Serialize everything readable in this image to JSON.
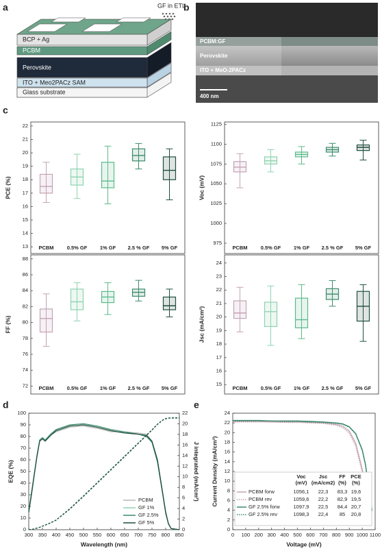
{
  "panel_labels": [
    "a",
    "b",
    "c",
    "d",
    "e"
  ],
  "schematic": {
    "annotation": "GF in ETL",
    "layers": [
      "BCP + Ag",
      "PCBM",
      "Perovskite",
      "ITO + Meo2PACz SAM",
      "Glass substrate"
    ]
  },
  "micrograph": {
    "layers": [
      "PCBM:GF",
      "Perovskite",
      "ITO + MeO-2PACz"
    ],
    "scale_bar": "400 nm"
  },
  "chart_data": [
    {
      "type": "box",
      "ylabel": "PCE (%)",
      "categories": [
        "PCBM",
        "0.5% GF",
        "1% GF",
        "2.5 % GF",
        "5% GF"
      ],
      "colors": [
        "#c4a3b4",
        "#8ed3b0",
        "#5bb98b",
        "#3a8a6a",
        "#1f4d3d"
      ],
      "ylim": [
        12.5,
        22.3
      ],
      "yticks": [
        13,
        14,
        15,
        16,
        17,
        18,
        19,
        20,
        21,
        22
      ],
      "boxes": [
        {
          "min": 16.3,
          "q1": 17.0,
          "median": 17.5,
          "q3": 18.4,
          "max": 19.3
        },
        {
          "min": 16.6,
          "q1": 17.6,
          "median": 18.2,
          "q3": 18.8,
          "max": 19.9
        },
        {
          "min": 16.2,
          "q1": 17.4,
          "median": 17.9,
          "q3": 19.3,
          "max": 20.5
        },
        {
          "min": 18.8,
          "q1": 19.4,
          "median": 19.8,
          "q3": 20.3,
          "max": 20.7
        },
        {
          "min": 16.5,
          "q1": 18.0,
          "median": 18.7,
          "q3": 19.7,
          "max": 20.3
        }
      ]
    },
    {
      "type": "box",
      "ylabel": "Voc (mV)",
      "categories": [
        "PCBM",
        "0.5% GF",
        "1% GF",
        "2.5 % GF",
        "5% GF"
      ],
      "colors": [
        "#c4a3b4",
        "#8ed3b0",
        "#5bb98b",
        "#3a8a6a",
        "#1f4d3d"
      ],
      "ylim": [
        962,
        1128
      ],
      "yticks": [
        975,
        1000,
        1025,
        1050,
        1075,
        1100,
        1125
      ],
      "boxes": [
        {
          "min": 1045,
          "q1": 1065,
          "median": 1071,
          "q3": 1078,
          "max": 1088
        },
        {
          "min": 1065,
          "q1": 1075,
          "median": 1079,
          "q3": 1084,
          "max": 1093
        },
        {
          "min": 1075,
          "q1": 1084,
          "median": 1087,
          "q3": 1090,
          "max": 1097
        },
        {
          "min": 1085,
          "q1": 1090,
          "median": 1093,
          "q3": 1096,
          "max": 1101
        },
        {
          "min": 1080,
          "q1": 1092,
          "median": 1096,
          "q3": 1099,
          "max": 1105
        }
      ]
    },
    {
      "type": "box",
      "ylabel": "FF (%)",
      "categories": [
        "PCBM",
        "0.5% GF",
        "1% GF",
        "2.5 % GF",
        "5% GF"
      ],
      "colors": [
        "#c4a3b4",
        "#8ed3b0",
        "#5bb98b",
        "#3a8a6a",
        "#1f4d3d"
      ],
      "ylim": [
        71,
        88.5
      ],
      "yticks": [
        72,
        74,
        76,
        78,
        80,
        82,
        84,
        86,
        88
      ],
      "boxes": [
        {
          "min": 77,
          "q1": 78.8,
          "median": 80.5,
          "q3": 81.7,
          "max": 83.6
        },
        {
          "min": 80.2,
          "q1": 81.6,
          "median": 82.6,
          "q3": 84.2,
          "max": 85
        },
        {
          "min": 81,
          "q1": 82.5,
          "median": 83.2,
          "q3": 83.9,
          "max": 85
        },
        {
          "min": 82.7,
          "q1": 83.3,
          "median": 83.8,
          "q3": 84.2,
          "max": 85.3
        },
        {
          "min": 80.7,
          "q1": 81.6,
          "median": 82.1,
          "q3": 83.2,
          "max": 84.2
        }
      ]
    },
    {
      "type": "box",
      "ylabel": "Jsc (mA/cm²)",
      "categories": [
        "PCBM",
        "0.5% GF",
        "1% GF",
        "2.5 % GF",
        "5% GF"
      ],
      "colors": [
        "#c4a3b4",
        "#8ed3b0",
        "#5bb98b",
        "#3a8a6a",
        "#1f4d3d"
      ],
      "ylim": [
        14.3,
        24.6
      ],
      "yticks": [
        15,
        16,
        17,
        18,
        19,
        20,
        21,
        22,
        23,
        24
      ],
      "boxes": [
        {
          "min": 18.9,
          "q1": 19.9,
          "median": 20.3,
          "q3": 21.2,
          "max": 22.2
        },
        {
          "min": 17.9,
          "q1": 19.3,
          "median": 20.4,
          "q3": 21.1,
          "max": 22.3
        },
        {
          "min": 18.4,
          "q1": 19.2,
          "median": 19.8,
          "q3": 21.4,
          "max": 22.4
        },
        {
          "min": 20.8,
          "q1": 21.3,
          "median": 21.7,
          "q3": 22.1,
          "max": 22.7
        },
        {
          "min": 18.2,
          "q1": 19.7,
          "median": 20.8,
          "q3": 21.9,
          "max": 22.4
        }
      ]
    },
    {
      "type": "eqe",
      "xlabel": "Wavelength (nm)",
      "ylabel": "EQE (%)",
      "y2label": "J integrated (mA/cm²)",
      "legend": "lower right",
      "x": [
        300,
        310,
        320,
        330,
        340,
        350,
        360,
        380,
        400,
        450,
        500,
        550,
        600,
        650,
        700,
        730,
        750,
        770,
        790,
        800,
        810,
        820,
        850
      ],
      "xlim": [
        300,
        850
      ],
      "xticks": [
        300,
        350,
        400,
        450,
        500,
        550,
        600,
        650,
        700,
        750,
        800,
        850
      ],
      "ylim": [
        0,
        100
      ],
      "yticks": [
        0,
        10,
        20,
        30,
        40,
        50,
        60,
        70,
        80,
        90,
        100
      ],
      "y2lim": [
        0,
        22
      ],
      "y2ticks": [
        0,
        2,
        4,
        6,
        8,
        10,
        12,
        14,
        16,
        18,
        20,
        22
      ],
      "series": [
        {
          "name": "PCBM",
          "color": "#b8b8b8",
          "values": [
            15,
            30,
            46,
            62,
            76,
            78,
            76,
            81,
            84,
            88,
            89,
            87,
            84,
            84,
            83,
            82,
            76,
            60,
            31,
            16,
            6,
            1,
            0
          ],
          "j_values": [
            0,
            0.05,
            0.15,
            0.3,
            0.45,
            0.65,
            0.85,
            1.3,
            1.8,
            3.9,
            6.3,
            8.8,
            11.3,
            13.8,
            16.3,
            17.8,
            18.8,
            19.9,
            20.7,
            20.95,
            21.05,
            21.1,
            21.1
          ]
        },
        {
          "name": "GF 1%",
          "color": "#8ed3b0",
          "values": [
            15,
            31,
            47,
            63,
            77,
            79,
            77,
            82,
            85,
            89,
            90,
            88,
            85,
            83,
            82,
            80,
            75,
            59,
            30,
            15,
            5,
            1,
            0
          ],
          "j_values": [
            0,
            0.05,
            0.15,
            0.3,
            0.46,
            0.66,
            0.86,
            1.32,
            1.82,
            3.95,
            6.35,
            8.85,
            11.3,
            13.8,
            16.3,
            17.8,
            18.8,
            19.9,
            20.7,
            20.95,
            21.05,
            21.1,
            21.1
          ]
        },
        {
          "name": "GF 2.5%",
          "color": "#3a8a6a",
          "values": [
            16,
            32,
            48,
            64,
            77,
            79,
            77,
            82,
            86,
            90,
            91,
            89,
            86,
            84,
            82,
            80,
            75,
            58,
            29,
            14,
            5,
            1,
            0
          ],
          "j_values": [
            0,
            0.05,
            0.16,
            0.31,
            0.47,
            0.67,
            0.87,
            1.33,
            1.84,
            4.0,
            6.4,
            8.9,
            11.4,
            13.9,
            16.4,
            17.9,
            18.9,
            19.95,
            20.75,
            21.0,
            21.1,
            21.15,
            21.15
          ]
        },
        {
          "name": "GF 5%",
          "color": "#1f4d3d",
          "values": [
            15,
            30,
            47,
            63,
            76,
            78,
            76,
            81,
            85,
            89,
            90,
            88,
            85,
            83,
            82,
            81,
            76,
            60,
            30,
            15,
            5,
            1,
            0
          ],
          "j_values": [
            0,
            0.05,
            0.15,
            0.3,
            0.45,
            0.65,
            0.85,
            1.3,
            1.8,
            3.9,
            6.3,
            8.8,
            11.3,
            13.8,
            16.3,
            17.8,
            18.8,
            19.9,
            20.7,
            20.95,
            21.05,
            21.1,
            21.1
          ]
        }
      ]
    },
    {
      "type": "jv",
      "xlabel": "Voltage (mV)",
      "ylabel": "Current Density (mA/cm²)",
      "x": [
        0,
        100,
        200,
        300,
        400,
        500,
        600,
        700,
        800,
        850,
        900,
        950,
        1000,
        1025,
        1050,
        1075,
        1100
      ],
      "xlim": [
        0,
        1100
      ],
      "xticks": [
        0,
        100,
        200,
        300,
        400,
        500,
        600,
        700,
        800,
        900,
        1000,
        1100
      ],
      "ylim": [
        0,
        24
      ],
      "yticks": [
        0,
        2,
        4,
        6,
        8,
        10,
        12,
        14,
        16,
        18,
        20,
        22,
        24
      ],
      "table_header": [
        [
          "Voc",
          "(mV)"
        ],
        [
          "Jsc",
          "(mA/cm2)"
        ],
        [
          "FF",
          "(%)"
        ],
        [
          "PCE",
          "(%)"
        ]
      ],
      "series": [
        {
          "name": "PCBM forw",
          "color": "#c4a3b4",
          "style": "solid",
          "values": [
            22.3,
            22.3,
            22.3,
            22.2,
            22.2,
            22.2,
            22.1,
            22.0,
            21.7,
            21.3,
            20.3,
            17.8,
            12.5,
            8.3,
            2.0,
            null,
            null
          ],
          "table": [
            "1056,1",
            "22,3",
            "83,3",
            "19,6"
          ]
        },
        {
          "name": "PCBM rev",
          "color": "#c4a3b4",
          "style": "dotted",
          "values": [
            22.2,
            22.2,
            22.2,
            22.2,
            22.1,
            22.1,
            22.0,
            21.9,
            21.5,
            21.0,
            19.9,
            17.2,
            11.8,
            7.6,
            1.2,
            null,
            null
          ],
          "table": [
            "1059,6",
            "22,2",
            "82,9",
            "19,5"
          ]
        },
        {
          "name": "GF 2.5% forw",
          "color": "#3a8a6a",
          "style": "solid",
          "values": [
            22.5,
            22.5,
            22.5,
            22.4,
            22.4,
            22.4,
            22.3,
            22.2,
            22.0,
            21.8,
            21.2,
            19.8,
            16.5,
            13.5,
            8.8,
            4.0,
            null
          ],
          "table": [
            "1097,9",
            "22,5",
            "84,4",
            "20,7"
          ]
        },
        {
          "name": "GF 2.5% rev",
          "color": "#3a8a6a",
          "style": "dotted",
          "values": [
            22.4,
            22.4,
            22.4,
            22.4,
            22.3,
            22.3,
            22.2,
            22.1,
            21.9,
            21.7,
            21.1,
            19.7,
            16.3,
            13.3,
            8.6,
            3.8,
            null
          ],
          "table": [
            "1098,3",
            "22,4",
            "85",
            "20,8"
          ]
        }
      ]
    }
  ]
}
